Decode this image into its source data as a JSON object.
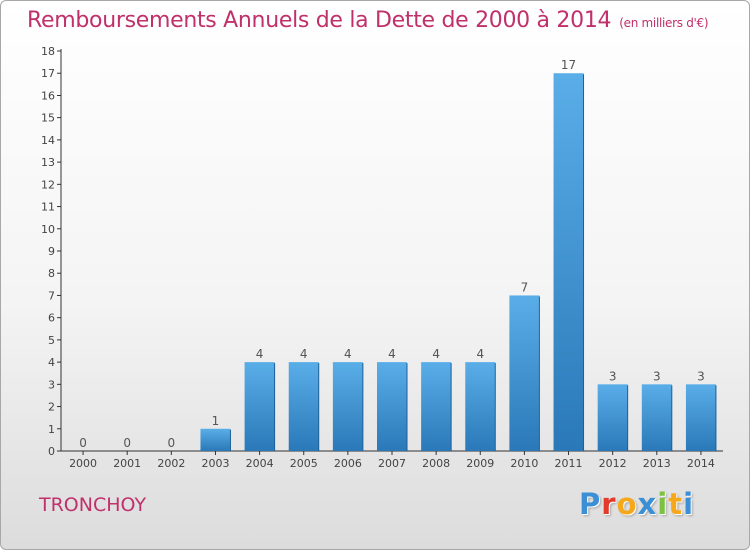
{
  "title": "Remboursements Annuels de la Dette de 2000 à 2014",
  "subtitle": "(en milliers d'€)",
  "commune": "TRONCHOY",
  "logo": {
    "letters": [
      "P",
      "r",
      "o",
      "x",
      "i",
      "t",
      "i"
    ],
    "colors": [
      "#3a8fd6",
      "#e33a2c",
      "#f6a81c",
      "#3a8fd6",
      "#7cc142",
      "#f6a81c",
      "#3a8fd6"
    ]
  },
  "colors": {
    "title": "#c0306a",
    "bar_light": "#5aaee8",
    "bar_dark": "#2a78b8",
    "axis": "#333333"
  },
  "chart_data": {
    "type": "bar",
    "title": "Remboursements Annuels de la Dette de 2000 à 2014",
    "ylabel": "en milliers d'€",
    "xlabel": "",
    "categories": [
      "2000",
      "2001",
      "2002",
      "2003",
      "2004",
      "2005",
      "2006",
      "2007",
      "2008",
      "2009",
      "2010",
      "2011",
      "2012",
      "2013",
      "2014"
    ],
    "values": [
      0,
      0,
      0,
      1,
      4,
      4,
      4,
      4,
      4,
      4,
      7,
      17,
      3,
      3,
      3
    ],
    "ylim": [
      0,
      18
    ],
    "yticks": [
      "0",
      "1",
      "2",
      "3",
      "4",
      "5",
      "6",
      "7",
      "8",
      "9",
      "10",
      "11",
      "12",
      "13",
      "14",
      "15",
      "16",
      "17",
      "18"
    ],
    "grid": false
  }
}
